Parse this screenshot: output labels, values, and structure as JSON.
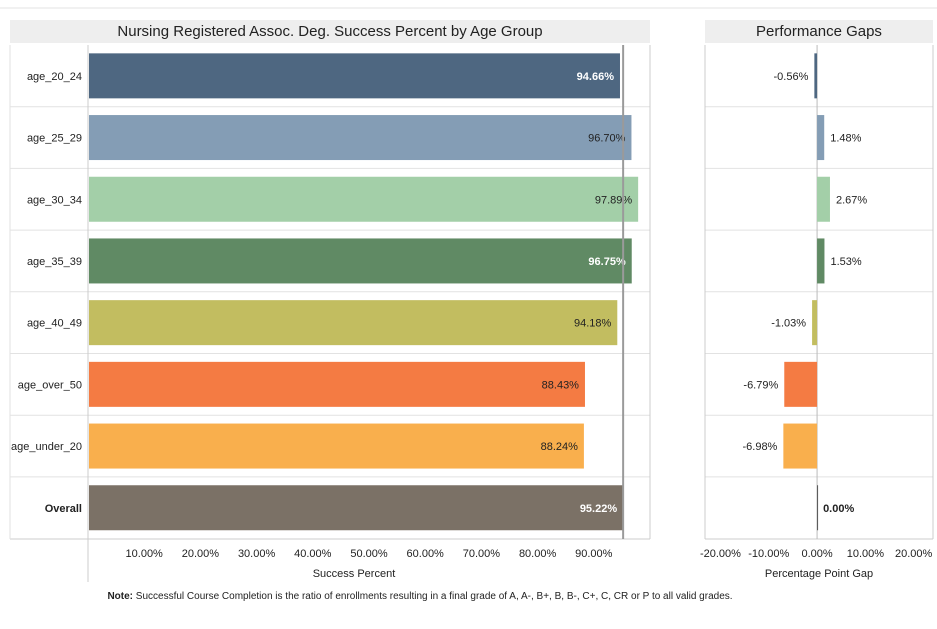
{
  "chart_data": [
    {
      "type": "bar",
      "orientation": "horizontal",
      "title": "Nursing Registered Assoc. Deg. Success Percent by Age Group",
      "xlabel": "Success Percent",
      "xlim": [
        0,
        100
      ],
      "ticks": [
        "10.00%",
        "20.00%",
        "30.00%",
        "40.00%",
        "50.00%",
        "60.00%",
        "70.00%",
        "80.00%",
        "90.00%"
      ],
      "reference_line": 95.22,
      "categories": [
        "age_20_24",
        "age_25_29",
        "age_30_34",
        "age_35_39",
        "age_40_49",
        "age_over_50",
        "age_under_20",
        "Overall"
      ],
      "values": [
        94.66,
        96.7,
        97.89,
        96.75,
        94.18,
        88.43,
        88.24,
        95.22
      ],
      "labels": [
        "94.66%",
        "96.70%",
        "97.89%",
        "96.75%",
        "94.18%",
        "88.43%",
        "88.24%",
        "95.22%"
      ],
      "colors": [
        "#4e6781",
        "#849db5",
        "#a3cfa8",
        "#608a64",
        "#c2bd60",
        "#f47b43",
        "#f9af4d",
        "#7b7166"
      ],
      "label_white": [
        true,
        false,
        false,
        true,
        false,
        false,
        false,
        true
      ]
    },
    {
      "type": "bar",
      "orientation": "horizontal",
      "title": "Performance Gaps",
      "xlabel": "Percentage Point Gap",
      "xlim": [
        -23.2,
        24
      ],
      "tick_values": [
        -20,
        -10,
        0,
        10,
        20
      ],
      "ticks": [
        "-20.00%",
        "-10.00%",
        "0.00%",
        "10.00%",
        "20.00%"
      ],
      "categories": [
        "age_20_24",
        "age_25_29",
        "age_30_34",
        "age_35_39",
        "age_40_49",
        "age_over_50",
        "age_under_20",
        "Overall"
      ],
      "values": [
        -0.56,
        1.48,
        2.67,
        1.53,
        -1.03,
        -6.79,
        -6.98,
        0.0
      ],
      "labels": [
        "-0.56%",
        "1.48%",
        "2.67%",
        "1.53%",
        "-1.03%",
        "-6.79%",
        "-6.98%",
        "0.00%"
      ],
      "colors": [
        "#4e6781",
        "#849db5",
        "#a3cfa8",
        "#608a64",
        "#c2bd60",
        "#f47b43",
        "#f9af4d",
        "#7b7166"
      ]
    }
  ],
  "note": {
    "bold": "Note:",
    "text": " Successful Course Completion is the ratio of enrollments resulting in a final grade of A, A-, B+, B, B-, C+, C, CR or P to all valid grades."
  }
}
